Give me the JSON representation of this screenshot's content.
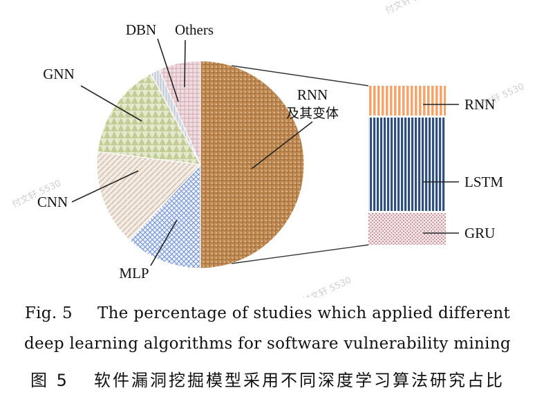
{
  "chart_data": {
    "type": "pie",
    "pie": {
      "categories": [
        "RNN及其变体",
        "MLP",
        "CNN",
        "GNN",
        "DBN",
        "Others"
      ],
      "label_text": [
        "RNN",
        "及其变体",
        "MLP",
        "CNN",
        "GNN",
        "DBN",
        "Others"
      ],
      "values": [
        50,
        12,
        15,
        15,
        1.5,
        6.5
      ],
      "unit": "%"
    },
    "breakdown": {
      "type": "stacked-bar",
      "parent": "RNN及其变体",
      "categories": [
        "RNN",
        "LSTM",
        "GRU"
      ],
      "values": [
        20,
        60,
        20
      ],
      "unit": "%"
    },
    "colors": {
      "rnn_variants": "#c8915a",
      "mlp": "#b9c9ea",
      "cnn": "#ece2d6",
      "gnn": "#d5dcb4",
      "dbn": "#d9dde6",
      "others": "#e8d0d6",
      "rnn": "#f3a56b",
      "lstm": "#2f4f7f",
      "gru": "#d9b8be"
    }
  },
  "caption": {
    "en_number": "Fig. 5",
    "en_line1": "The percentage of studies which applied different",
    "en_line2": "deep learning algorithms for software vulnerability mining",
    "cn_number": "图 5",
    "cn_text": "软件漏洞挖掘模型采用不同深度学习算法研究占比"
  },
  "watermark": "付文轩 5530"
}
